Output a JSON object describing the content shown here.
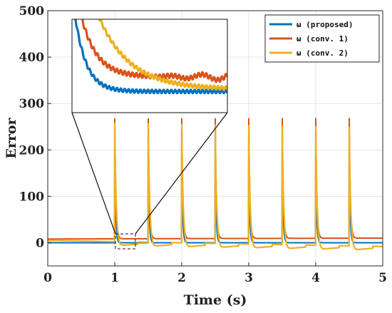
{
  "chart_data": {
    "type": "line",
    "xlabel": "Time (s)",
    "ylabel": "Error",
    "xlim": [
      0,
      5
    ],
    "ylim": [
      -50,
      500
    ],
    "xticks": [
      "0",
      "1",
      "2",
      "3",
      "4",
      "5"
    ],
    "yticks": [
      "0",
      "100",
      "200",
      "300",
      "400",
      "500"
    ],
    "grid": true,
    "legend_position": "top-right",
    "spike_times": [
      1.0,
      1.5,
      2.0,
      2.5,
      3.0,
      3.5,
      4.0,
      4.5
    ],
    "series": [
      {
        "name": "ω (proposed)",
        "color": "#0072BD",
        "spike_peak": 252,
        "baseline_start": 0,
        "baseline_end": 0
      },
      {
        "name": "ω (conv. 1)",
        "color": "#D95319",
        "spike_peak": 258,
        "baseline_start": 8,
        "baseline_end": 10
      },
      {
        "name": "ω (conv. 2)",
        "color": "#EDB120",
        "spike_peak": 255,
        "baseline_start": 5,
        "baseline_end": -8
      }
    ],
    "inset": {
      "x_range": [
        1.0,
        1.3
      ],
      "y_range": [
        -15,
        15
      ],
      "grid": false
    }
  }
}
